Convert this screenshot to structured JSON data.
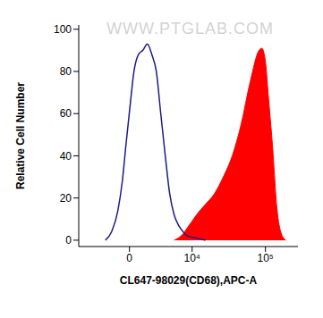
{
  "chart_data": {
    "type": "area",
    "annotations": [
      "WWW.PTGLAB.COM"
    ],
    "x_label": "CL647-98029(CD68),APC-A",
    "y_label": "Relative Cell Number",
    "xlim": [
      -6500,
      262144
    ],
    "xticks": [
      0,
      {
        "value": 10000,
        "label": "10⁴"
      },
      {
        "value": 100000,
        "label": "10⁵"
      }
    ],
    "ylim": [
      -3,
      102
    ],
    "yticks": [
      0,
      20,
      40,
      60,
      80,
      100
    ],
    "grid": false,
    "series": [
      {
        "type": "line",
        "color": "#1c1c8a",
        "x": [
          -1953,
          -1308,
          -770,
          -443,
          -209,
          50,
          266,
          569,
          914,
          1308,
          1755,
          2267,
          2850,
          3520,
          4271,
          5130,
          6120,
          7240,
          8500,
          11630,
          15680
        ],
        "values": [
          0,
          4,
          14,
          28,
          45,
          65,
          80,
          88,
          90,
          93,
          88,
          80,
          60,
          40,
          22,
          12,
          7,
          4,
          2,
          1,
          0
        ]
      },
      {
        "type": "area",
        "color": "#ff0000",
        "x": [
          5130,
          7240,
          8500,
          9980,
          11630,
          15680,
          20940,
          27780,
          36680,
          48200,
          63200,
          82650,
          89500,
          99750,
          108100,
          123300,
          140800,
          160700,
          183500
        ],
        "values": [
          0,
          3,
          6,
          9,
          12,
          17,
          22,
          30,
          40,
          55,
          75,
          90,
          91,
          85,
          70,
          45,
          15,
          3,
          0
        ]
      }
    ]
  }
}
